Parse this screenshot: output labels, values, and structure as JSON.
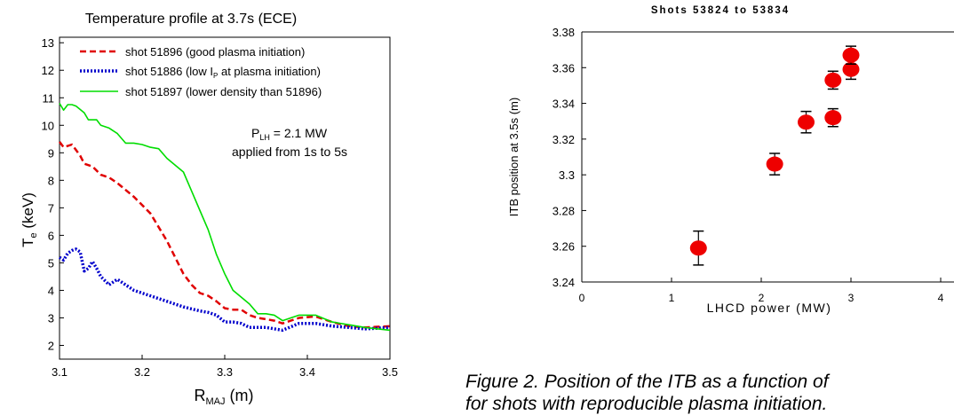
{
  "chart_data": [
    {
      "type": "line",
      "title": "Temperature profile at 3.7s (ECE)",
      "xlabel": {
        "main": "R",
        "sub": "MAJ",
        "unit": " (m)"
      },
      "ylabel": {
        "main": "T",
        "sub": "e",
        "unit": " (keV)"
      },
      "xlim": [
        3.1,
        3.5
      ],
      "ylim": [
        1.5,
        13.2
      ],
      "xticks": [
        "3.1",
        "3.2",
        "3.3",
        "3.4",
        "3.5"
      ],
      "yticks": [
        "2",
        "3",
        "4",
        "5",
        "6",
        "7",
        "8",
        "9",
        "10",
        "11",
        "12",
        "13"
      ],
      "grid": false,
      "legend_position": "top-left",
      "annotation": {
        "line1_main": "P",
        "line1_sub": "LH",
        "line1_rest": " = 2.1 MW",
        "line2": "applied from 1s to 5s"
      },
      "series": [
        {
          "name": "shot 51896 (good plasma initiation)",
          "color": "#e00000",
          "dash": "dashed",
          "points": [
            [
              3.1,
              9.4
            ],
            [
              3.105,
              9.2
            ],
            [
              3.115,
              9.3
            ],
            [
              3.125,
              8.9
            ],
            [
              3.13,
              8.6
            ],
            [
              3.14,
              8.5
            ],
            [
              3.15,
              8.2
            ],
            [
              3.16,
              8.1
            ],
            [
              3.17,
              7.9
            ],
            [
              3.19,
              7.4
            ],
            [
              3.21,
              6.8
            ],
            [
              3.23,
              5.8
            ],
            [
              3.25,
              4.6
            ],
            [
              3.26,
              4.2
            ],
            [
              3.27,
              3.9
            ],
            [
              3.28,
              3.8
            ],
            [
              3.29,
              3.6
            ],
            [
              3.3,
              3.35
            ],
            [
              3.31,
              3.3
            ],
            [
              3.32,
              3.3
            ],
            [
              3.33,
              3.1
            ],
            [
              3.34,
              3.0
            ],
            [
              3.35,
              2.95
            ],
            [
              3.36,
              2.9
            ],
            [
              3.37,
              2.8
            ],
            [
              3.38,
              2.9
            ],
            [
              3.39,
              3.0
            ],
            [
              3.41,
              3.05
            ],
            [
              3.43,
              2.85
            ],
            [
              3.45,
              2.7
            ],
            [
              3.47,
              2.65
            ],
            [
              3.5,
              2.7
            ]
          ]
        },
        {
          "name": "shot 51886 (low I_P at plasma initiation)",
          "name_main": "shot 51886 (low I",
          "name_sub": "P",
          "name_rest": " at plasma initiation)",
          "color": "#0000cc",
          "dash": "dotted",
          "points": [
            [
              3.1,
              5.2
            ],
            [
              3.105,
              5.1
            ],
            [
              3.11,
              5.35
            ],
            [
              3.115,
              5.45
            ],
            [
              3.12,
              5.5
            ],
            [
              3.125,
              5.4
            ],
            [
              3.13,
              4.7
            ],
            [
              3.135,
              4.8
            ],
            [
              3.14,
              5.05
            ],
            [
              3.145,
              4.8
            ],
            [
              3.15,
              4.5
            ],
            [
              3.16,
              4.2
            ],
            [
              3.17,
              4.4
            ],
            [
              3.18,
              4.2
            ],
            [
              3.19,
              4.0
            ],
            [
              3.21,
              3.8
            ],
            [
              3.23,
              3.6
            ],
            [
              3.25,
              3.4
            ],
            [
              3.27,
              3.25
            ],
            [
              3.28,
              3.2
            ],
            [
              3.29,
              3.1
            ],
            [
              3.3,
              2.85
            ],
            [
              3.31,
              2.85
            ],
            [
              3.32,
              2.8
            ],
            [
              3.33,
              2.65
            ],
            [
              3.35,
              2.65
            ],
            [
              3.37,
              2.55
            ],
            [
              3.39,
              2.8
            ],
            [
              3.41,
              2.8
            ],
            [
              3.43,
              2.7
            ],
            [
              3.45,
              2.65
            ],
            [
              3.47,
              2.6
            ],
            [
              3.5,
              2.65
            ]
          ]
        },
        {
          "name": "shot 51897 (lower density than 51896)",
          "color": "#00dd00",
          "dash": "solid",
          "points": [
            [
              3.1,
              10.8
            ],
            [
              3.105,
              10.55
            ],
            [
              3.11,
              10.75
            ],
            [
              3.115,
              10.75
            ],
            [
              3.12,
              10.7
            ],
            [
              3.13,
              10.45
            ],
            [
              3.135,
              10.2
            ],
            [
              3.145,
              10.2
            ],
            [
              3.15,
              10.0
            ],
            [
              3.16,
              9.9
            ],
            [
              3.17,
              9.7
            ],
            [
              3.18,
              9.35
            ],
            [
              3.19,
              9.35
            ],
            [
              3.2,
              9.3
            ],
            [
              3.21,
              9.2
            ],
            [
              3.22,
              9.15
            ],
            [
              3.23,
              8.8
            ],
            [
              3.25,
              8.3
            ],
            [
              3.26,
              7.6
            ],
            [
              3.27,
              6.9
            ],
            [
              3.28,
              6.2
            ],
            [
              3.29,
              5.3
            ],
            [
              3.3,
              4.6
            ],
            [
              3.31,
              4.0
            ],
            [
              3.33,
              3.5
            ],
            [
              3.34,
              3.15
            ],
            [
              3.35,
              3.15
            ],
            [
              3.36,
              3.1
            ],
            [
              3.37,
              2.9
            ],
            [
              3.38,
              3.0
            ],
            [
              3.39,
              3.1
            ],
            [
              3.41,
              3.1
            ],
            [
              3.43,
              2.85
            ],
            [
              3.45,
              2.75
            ],
            [
              3.47,
              2.65
            ],
            [
              3.5,
              2.55
            ]
          ]
        }
      ]
    },
    {
      "type": "scatter",
      "title": "Shots 53824 to 53834",
      "xlabel": "LHCD power (MW)",
      "ylabel": "ITB position at 3.5s (m)",
      "xlim": [
        0,
        4
      ],
      "ylim": [
        3.24,
        3.38
      ],
      "xticks": [
        "0",
        "1",
        "2",
        "3",
        "4"
      ],
      "yticks": [
        "3.24",
        "3.26",
        "3.28",
        "3.3",
        "3.32",
        "3.34",
        "3.36",
        "3.38"
      ],
      "grid": false,
      "marker_color": "#ee0000",
      "points": [
        {
          "x": 1.3,
          "y": 3.259,
          "err": 0.0095
        },
        {
          "x": 2.15,
          "y": 3.306,
          "err": 0.006
        },
        {
          "x": 2.5,
          "y": 3.3295,
          "err": 0.006
        },
        {
          "x": 2.8,
          "y": 3.332,
          "err": 0.005
        },
        {
          "x": 2.8,
          "y": 3.353,
          "err": 0.005
        },
        {
          "x": 3.0,
          "y": 3.359,
          "err": 0.0055
        },
        {
          "x": 3.0,
          "y": 3.367,
          "err": 0.005
        }
      ]
    }
  ],
  "caption": {
    "line1": "Figure 2. Position of the ITB as a function of",
    "line2": "for shots with reproducible plasma initiation."
  }
}
